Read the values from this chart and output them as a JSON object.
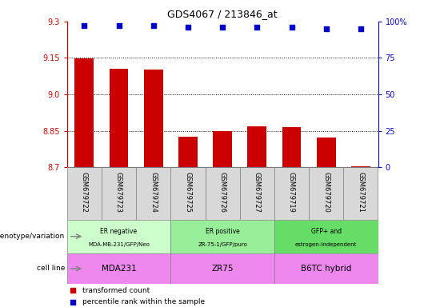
{
  "title": "GDS4067 / 213846_at",
  "samples": [
    "GSM679722",
    "GSM679723",
    "GSM679724",
    "GSM679725",
    "GSM679726",
    "GSM679727",
    "GSM679719",
    "GSM679720",
    "GSM679721"
  ],
  "bar_values": [
    9.148,
    9.107,
    9.103,
    8.827,
    8.848,
    8.868,
    8.865,
    8.823,
    8.703
  ],
  "percentile_values": [
    97,
    97,
    97,
    96,
    96,
    96,
    96,
    95,
    95
  ],
  "ylim_left": [
    8.7,
    9.3
  ],
  "ylim_right": [
    0,
    100
  ],
  "yticks_left": [
    8.7,
    8.85,
    9.0,
    9.15,
    9.3
  ],
  "yticks_right": [
    0,
    25,
    50,
    75,
    100
  ],
  "bar_color": "#cc0000",
  "dot_color": "#0000cc",
  "groups": [
    {
      "label": "ER negative\nMDA-MB-231/GFP/Neo",
      "start": 0,
      "end": 3,
      "color": "#ccffcc"
    },
    {
      "label": "ER positive\nZR-75-1/GFP/puro",
      "start": 3,
      "end": 6,
      "color": "#99ee99"
    },
    {
      "label": "GFP+ and\nestrogen-independent",
      "start": 6,
      "end": 9,
      "color": "#66dd66"
    }
  ],
  "cell_lines": [
    {
      "label": "MDA231",
      "start": 0,
      "end": 3,
      "color": "#ee88ee"
    },
    {
      "label": "ZR75",
      "start": 3,
      "end": 6,
      "color": "#ee88ee"
    },
    {
      "label": "B6TC hybrid",
      "start": 6,
      "end": 9,
      "color": "#ee88ee"
    }
  ],
  "genotype_label": "genotype/variation",
  "cellline_label": "cell line",
  "legend_items": [
    {
      "label": "transformed count",
      "color": "#cc0000"
    },
    {
      "label": "percentile rank within the sample",
      "color": "#0000cc"
    }
  ],
  "tick_color_left": "#cc0000",
  "tick_color_right": "#0000cc",
  "xtick_bg": "#d0d0d0",
  "plot_bg": "#ffffff"
}
